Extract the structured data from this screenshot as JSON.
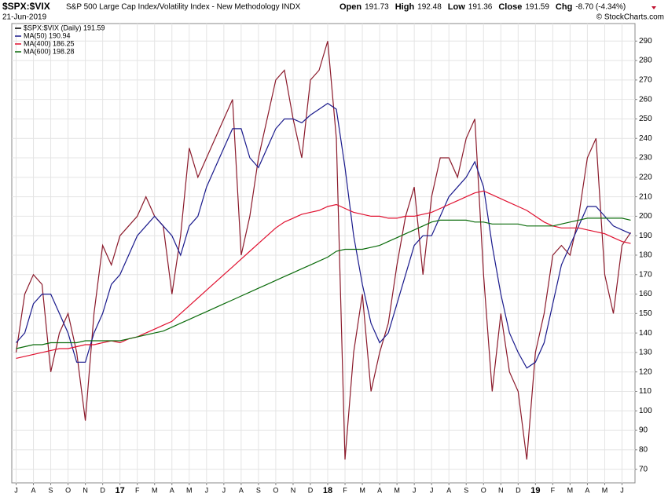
{
  "chart_data": {
    "type": "line",
    "symbol": "$SPX:$VIX",
    "title": "S&P 500 Large Cap Index/Volatility Index - New Methodology INDX",
    "date": "21-Jun-2019",
    "watermark": "© StockCharts.com",
    "quote": [
      {
        "label": "Open",
        "value": "191.73"
      },
      {
        "label": "High",
        "value": "192.48"
      },
      {
        "label": "Low",
        "value": "191.36"
      },
      {
        "label": "Close",
        "value": "191.59"
      },
      {
        "label": "Chg",
        "value": "-8.70 (-4.34%)"
      }
    ],
    "categories": [
      "J",
      null,
      "A",
      null,
      "S",
      null,
      "O",
      null,
      "N",
      null,
      "D",
      null,
      "17",
      null,
      "F",
      null,
      "M",
      null,
      "A",
      null,
      "M",
      null,
      "J",
      null,
      "J",
      null,
      "A",
      null,
      "S",
      null,
      "O",
      null,
      "N",
      null,
      "D",
      null,
      "18",
      null,
      "F",
      null,
      "M",
      null,
      "A",
      null,
      "M",
      null,
      "J",
      null,
      "J",
      null,
      "A",
      null,
      "S",
      null,
      "O",
      null,
      "N",
      null,
      "D",
      null,
      "19",
      null,
      "F",
      null,
      "M",
      null,
      "A",
      null,
      "M",
      null,
      "J",
      null
    ],
    "series": [
      {
        "name": "$SPX:$VIX (Daily) 191.59",
        "color": "#8b1a2b",
        "width": 1.2,
        "values": [
          130,
          160,
          170,
          165,
          120,
          140,
          150,
          130,
          95,
          150,
          185,
          175,
          190,
          195,
          200,
          210,
          200,
          195,
          160,
          190,
          235,
          220,
          230,
          240,
          250,
          260,
          180,
          200,
          230,
          250,
          270,
          275,
          250,
          230,
          270,
          275,
          290,
          240,
          75,
          130,
          160,
          110,
          130,
          145,
          175,
          200,
          215,
          170,
          210,
          230,
          230,
          220,
          240,
          250,
          170,
          110,
          150,
          120,
          110,
          75,
          130,
          150,
          180,
          185,
          180,
          200,
          230,
          240,
          170,
          150,
          185,
          191.59
        ]
      },
      {
        "name": "MA(50) 190.94",
        "color": "#1a1a8c",
        "width": 1.2,
        "values": [
          135,
          140,
          155,
          160,
          160,
          150,
          140,
          125,
          125,
          140,
          150,
          165,
          170,
          180,
          190,
          195,
          200,
          195,
          190,
          180,
          195,
          200,
          215,
          225,
          235,
          245,
          245,
          230,
          225,
          235,
          245,
          250,
          250,
          248,
          252,
          255,
          258,
          255,
          225,
          190,
          165,
          145,
          135,
          140,
          155,
          170,
          185,
          190,
          190,
          200,
          210,
          215,
          220,
          228,
          215,
          185,
          160,
          140,
          130,
          122,
          125,
          135,
          155,
          175,
          185,
          195,
          205,
          205,
          200,
          195,
          193,
          191
        ]
      },
      {
        "name": "MA(400) 186.25",
        "color": "#e0102f",
        "width": 1.2,
        "values": [
          127,
          128,
          129,
          130,
          131,
          132,
          132,
          133,
          134,
          134,
          135,
          136,
          135,
          137,
          138,
          140,
          142,
          144,
          146,
          150,
          154,
          158,
          162,
          166,
          170,
          174,
          178,
          182,
          186,
          190,
          194,
          197,
          199,
          201,
          202,
          203,
          205,
          206,
          204,
          202,
          201,
          200,
          200,
          199,
          199,
          200,
          200,
          201,
          202,
          204,
          206,
          208,
          210,
          212,
          213,
          211,
          209,
          207,
          205,
          203,
          200,
          197,
          195,
          194,
          194,
          194,
          193,
          192,
          191,
          189,
          187,
          186
        ]
      },
      {
        "name": "MA(600) 198.28",
        "color": "#0a6b0a",
        "width": 1.2,
        "values": [
          132,
          133,
          134,
          134,
          135,
          135,
          135,
          135,
          136,
          136,
          136,
          136,
          136,
          137,
          138,
          139,
          140,
          141,
          143,
          145,
          147,
          149,
          151,
          153,
          155,
          157,
          159,
          161,
          163,
          165,
          167,
          169,
          171,
          173,
          175,
          177,
          179,
          182,
          183,
          183,
          183,
          184,
          185,
          187,
          189,
          191,
          193,
          195,
          197,
          198,
          198,
          198,
          198,
          197,
          197,
          196,
          196,
          196,
          196,
          195,
          195,
          195,
          195,
          196,
          197,
          198,
          199,
          199,
          199,
          199,
          199,
          198
        ]
      }
    ],
    "ylim": [
      63,
      299
    ],
    "yticks": [
      70,
      80,
      90,
      100,
      110,
      120,
      130,
      140,
      150,
      160,
      170,
      180,
      190,
      200,
      210,
      220,
      230,
      240,
      250,
      260,
      270,
      280,
      290
    ],
    "grid": true
  }
}
